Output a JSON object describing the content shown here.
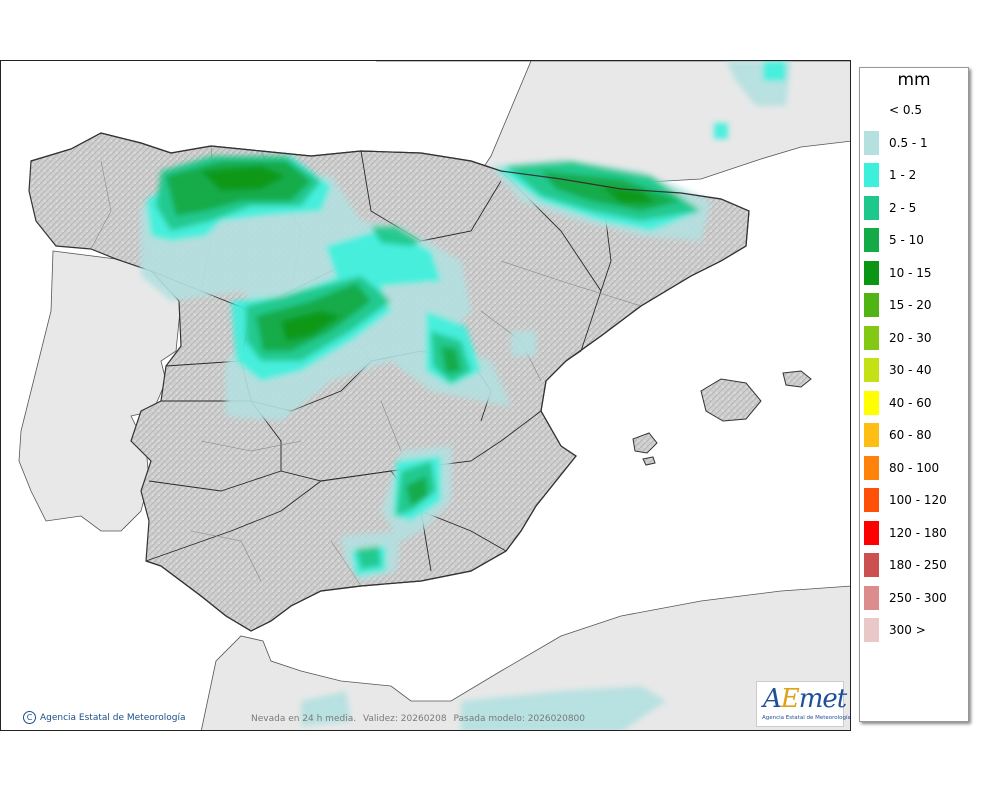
{
  "map": {
    "credit": "Agencia Estatal de Meteorología",
    "info_product": "Nevada en 24 h media.",
    "info_validity": "Validez: 20260208",
    "info_run": "Pasada modelo: 2026020800",
    "logo_text": "AEmet",
    "logo_sub": "Agencia Estatal de Meteorología"
  },
  "legend": {
    "unit": "mm",
    "items": [
      {
        "label": "< 0.5",
        "color": "#ffffff"
      },
      {
        "label": "0.5 - 1",
        "color": "#b4e0e0"
      },
      {
        "label": "1 - 2",
        "color": "#3cf0dc"
      },
      {
        "label": "2 - 5",
        "color": "#1ec88c"
      },
      {
        "label": "5 - 10",
        "color": "#14aa46"
      },
      {
        "label": "10 - 15",
        "color": "#0a9614"
      },
      {
        "label": "15 - 20",
        "color": "#50b414"
      },
      {
        "label": "20 - 30",
        "color": "#82c814"
      },
      {
        "label": "30 - 40",
        "color": "#c3e114"
      },
      {
        "label": "40 - 60",
        "color": "#ffff00"
      },
      {
        "label": "60 - 80",
        "color": "#ffbe14"
      },
      {
        "label": "80 - 100",
        "color": "#ff820a"
      },
      {
        "label": "100 - 120",
        "color": "#ff500a"
      },
      {
        "label": "120 - 180",
        "color": "#ff0000"
      },
      {
        "label": "180 - 250",
        "color": "#cd5050"
      },
      {
        "label": "250 - 300",
        "color": "#dc8c8c"
      },
      {
        "label": "300 >",
        "color": "#ebc8c8"
      }
    ]
  }
}
